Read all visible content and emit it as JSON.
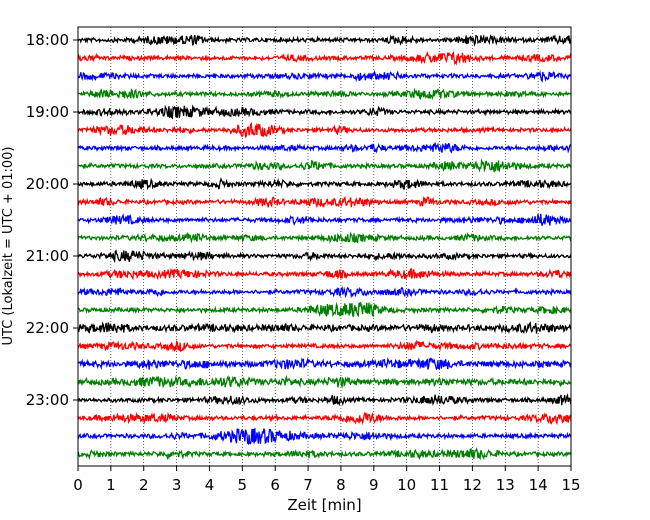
{
  "chart_data": {
    "type": "line",
    "title": "",
    "xlabel": "Zeit  [min]",
    "ylabel": "UTC (Lokalzeit = UTC + 01:00)",
    "xlim": [
      0,
      15
    ],
    "x_ticks": [
      "0",
      "1",
      "2",
      "3",
      "4",
      "5",
      "6",
      "7",
      "8",
      "9",
      "10",
      "11",
      "12",
      "13",
      "14",
      "15"
    ],
    "y_ticks": [
      "18:00",
      "19:00",
      "20:00",
      "21:00",
      "22:00",
      "23:00"
    ],
    "grid": "vertical-dotted",
    "trace_colors": [
      "#000000",
      "#ff0000",
      "#0000ff",
      "#008000"
    ],
    "traces": [
      {
        "start": "18:00",
        "color": "#000000",
        "amplitude": 2
      },
      {
        "start": "18:15",
        "color": "#ff0000",
        "amplitude": 2
      },
      {
        "start": "18:30",
        "color": "#0000ff",
        "amplitude": 2
      },
      {
        "start": "18:45",
        "color": "#008000",
        "amplitude": 2
      },
      {
        "start": "19:00",
        "color": "#000000",
        "amplitude": 2
      },
      {
        "start": "19:15",
        "color": "#ff0000",
        "amplitude": 2
      },
      {
        "start": "19:30",
        "color": "#0000ff",
        "amplitude": 2
      },
      {
        "start": "19:45",
        "color": "#008000",
        "amplitude": 2
      },
      {
        "start": "20:00",
        "color": "#000000",
        "amplitude": 2
      },
      {
        "start": "20:15",
        "color": "#ff0000",
        "amplitude": 2
      },
      {
        "start": "20:30",
        "color": "#0000ff",
        "amplitude": 2
      },
      {
        "start": "20:45",
        "color": "#008000",
        "amplitude": 2
      },
      {
        "start": "21:00",
        "color": "#000000",
        "amplitude": 2
      },
      {
        "start": "21:15",
        "color": "#ff0000",
        "amplitude": 2
      },
      {
        "start": "21:30",
        "color": "#0000ff",
        "amplitude": 2
      },
      {
        "start": "21:45",
        "color": "#008000",
        "amplitude": 2
      },
      {
        "start": "22:00",
        "color": "#000000",
        "amplitude": 3
      },
      {
        "start": "22:15",
        "color": "#ff0000",
        "amplitude": 2
      },
      {
        "start": "22:30",
        "color": "#0000ff",
        "amplitude": 3
      },
      {
        "start": "22:45",
        "color": "#008000",
        "amplitude": 3
      },
      {
        "start": "23:00",
        "color": "#000000",
        "amplitude": 2
      },
      {
        "start": "23:15",
        "color": "#ff0000",
        "amplitude": 2
      },
      {
        "start": "23:30",
        "color": "#0000ff",
        "amplitude": 2
      },
      {
        "start": "23:45",
        "color": "#008000",
        "amplitude": 2
      }
    ]
  }
}
